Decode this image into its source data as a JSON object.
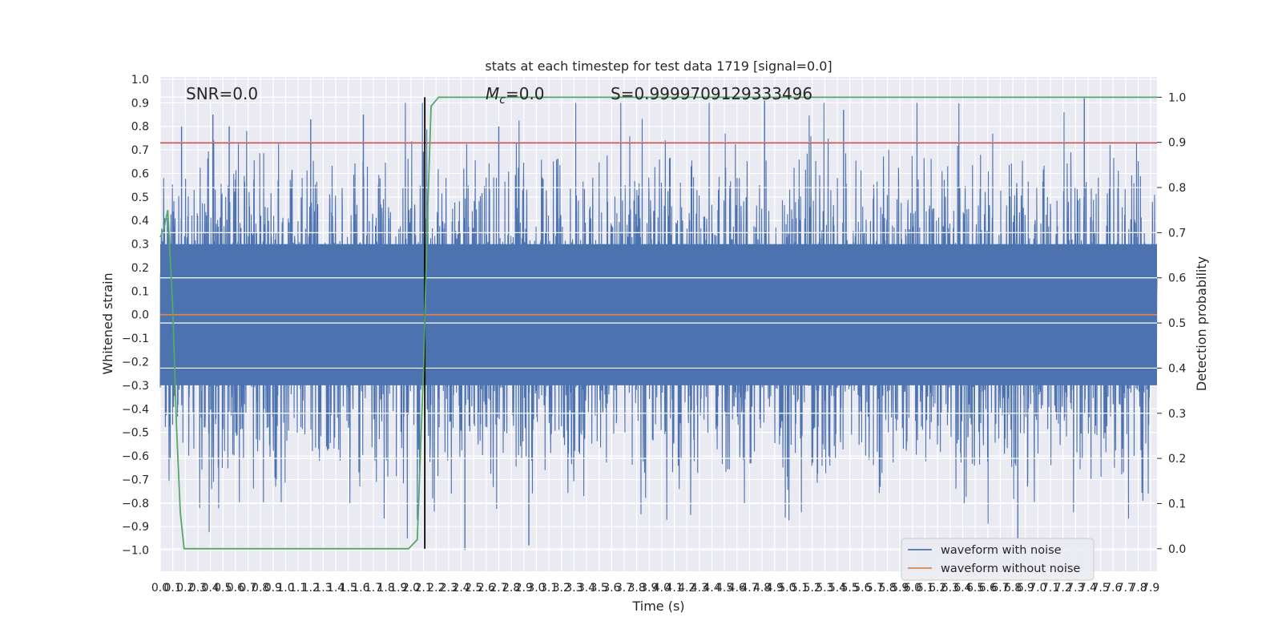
{
  "chart_data": {
    "type": "line",
    "title": "stats at each timestep for test data 1719 [signal=0.0]",
    "xlabel": "Time (s)",
    "ylabel": "Whitened strain",
    "y2label": "Detection probability",
    "xlim": [
      0.0,
      7.95
    ],
    "ylim": [
      -1.09,
      1.01
    ],
    "y2lim": [
      -0.05,
      1.045
    ],
    "x_ticks": [
      0.0,
      0.1,
      0.2,
      0.3,
      0.4,
      0.5,
      0.6,
      0.7,
      0.8,
      0.9,
      1.0,
      1.1,
      1.2,
      1.3,
      1.4,
      1.5,
      1.6,
      1.7,
      1.8,
      1.9,
      2.0,
      2.1,
      2.2,
      2.3,
      2.4,
      2.5,
      2.6,
      2.7,
      2.8,
      2.9,
      3.0,
      3.1,
      3.2,
      3.3,
      3.4,
      3.5,
      3.6,
      3.7,
      3.8,
      3.9,
      4.0,
      4.1,
      4.2,
      4.3,
      4.4,
      4.5,
      4.6,
      4.7,
      4.8,
      4.9,
      5.0,
      5.1,
      5.2,
      5.3,
      5.4,
      5.5,
      5.6,
      5.7,
      5.8,
      5.9,
      6.0,
      6.1,
      6.2,
      6.3,
      6.4,
      6.5,
      6.6,
      6.7,
      6.8,
      6.9,
      7.0,
      7.1,
      7.2,
      7.3,
      7.4,
      7.5,
      7.6,
      7.7,
      7.8,
      7.9
    ],
    "y_ticks": [
      -1.0,
      -0.9,
      -0.8,
      -0.7,
      -0.6,
      -0.5,
      -0.4,
      -0.3,
      -0.2,
      -0.1,
      0.0,
      0.1,
      0.2,
      0.3,
      0.4,
      0.5,
      0.6,
      0.7,
      0.8,
      0.9,
      1.0
    ],
    "y_tick_labels": [
      "−1.0",
      "−0.9",
      "−0.8",
      "−0.7",
      "−0.6",
      "−0.5",
      "−0.4",
      "−0.3",
      "−0.2",
      "−0.1",
      "0.0",
      "0.1",
      "0.2",
      "0.3",
      "0.4",
      "0.5",
      "0.6",
      "0.7",
      "0.8",
      "0.9",
      "1.0"
    ],
    "y2_ticks": [
      0.0,
      0.1,
      0.2,
      0.3,
      0.4,
      0.5,
      0.6,
      0.7,
      0.8,
      0.9,
      1.0
    ],
    "grid": true,
    "legend_position": "lower-right",
    "series": [
      {
        "name": "waveform with noise",
        "color": "#4c72b0",
        "description": "dense whitened noise, envelope approx ±0.5 with spikes to ±0.9",
        "n_samples": 4096,
        "envelope_peaks": [
          {
            "x": 0.17,
            "y": 0.8
          },
          {
            "x": 0.42,
            "y": 0.85
          },
          {
            "x": 0.55,
            "y": 0.8
          },
          {
            "x": 1.2,
            "y": 0.83
          },
          {
            "x": 1.62,
            "y": 0.85
          },
          {
            "x": 2.7,
            "y": 0.8
          },
          {
            "x": 4.82,
            "y": 0.91
          },
          {
            "x": 5.45,
            "y": 0.87
          },
          {
            "x": 7.37,
            "y": 0.92
          },
          {
            "x": 2.43,
            "y": -1.0
          },
          {
            "x": 2.94,
            "y": -0.98
          },
          {
            "x": 6.84,
            "y": -0.95
          }
        ]
      },
      {
        "name": "waveform without noise",
        "color": "#dd8452",
        "x": [
          0.0,
          7.95
        ],
        "y": [
          0.0,
          0.0
        ]
      },
      {
        "axis": "right",
        "color": "#55a868",
        "x": [
          0.0,
          0.03,
          0.06,
          0.1,
          0.13,
          0.16,
          0.19,
          0.25,
          0.5,
          1.0,
          1.5,
          1.98,
          2.05,
          2.1,
          2.13,
          2.16,
          2.22,
          2.4,
          3.0,
          5.0,
          7.95
        ],
        "y": [
          0.69,
          0.71,
          0.75,
          0.53,
          0.27,
          0.08,
          0.0,
          0.0,
          0.0,
          0.0,
          0.0,
          0.0,
          0.02,
          0.4,
          0.72,
          0.98,
          1.0,
          1.0,
          1.0,
          1.0,
          1.0
        ]
      }
    ],
    "hlines": [
      {
        "axis": "left",
        "y": 0.73,
        "color": "#c44e52"
      }
    ],
    "vlines": [
      {
        "axis": "right",
        "x": 2.11,
        "ymin": 0.0,
        "ymax": 1.0,
        "color": "#000000"
      }
    ],
    "annotations": [
      {
        "text": "SNR=0.0"
      },
      {
        "text": "M",
        "sub": "c",
        "suffix": "=0.0"
      },
      {
        "text": "S=0.9999709129333496"
      }
    ]
  }
}
